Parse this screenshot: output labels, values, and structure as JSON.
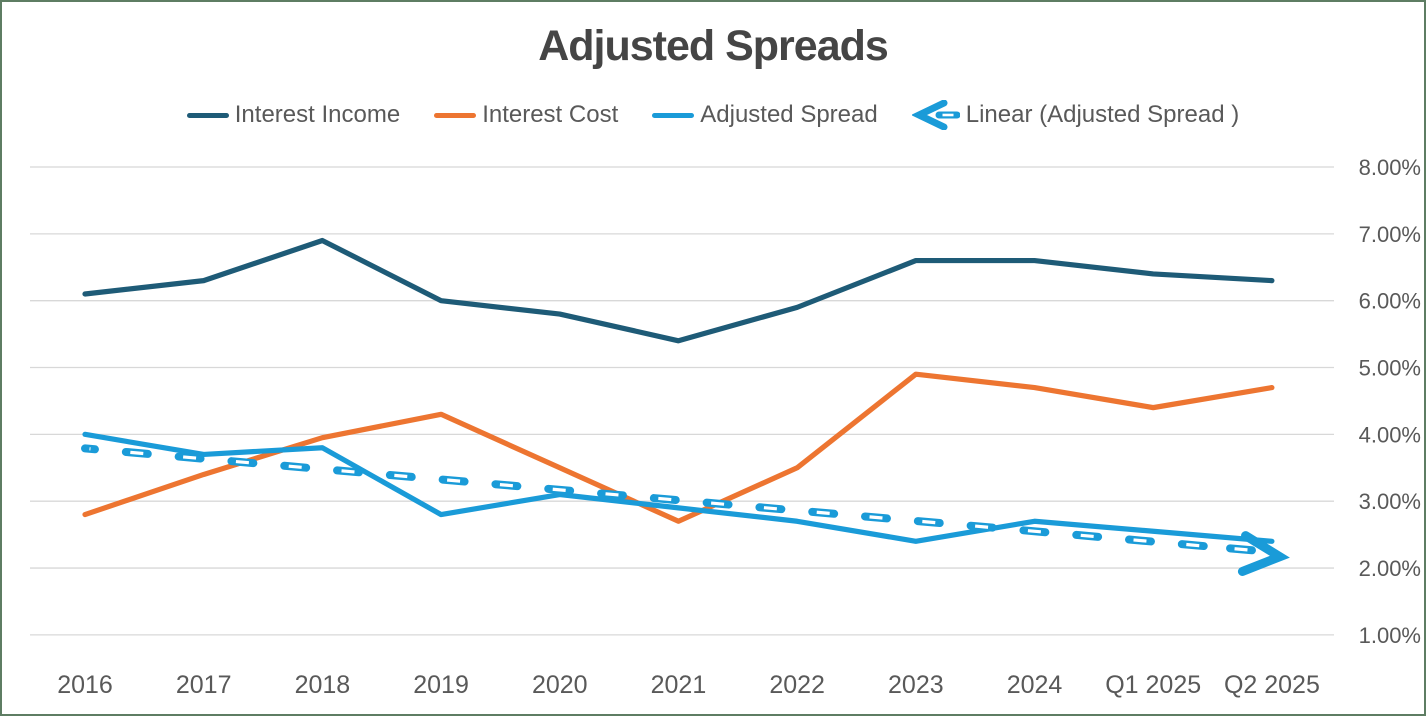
{
  "title": "Adjusted Spreads",
  "legend": {
    "items": [
      {
        "label": "Interest Income",
        "marker": "line",
        "color": "#1e5b77"
      },
      {
        "label": "Interest Cost",
        "marker": "line",
        "color": "#ed7531"
      },
      {
        "label": "Adjusted Spread",
        "marker": "line",
        "color": "#1a9bd8"
      },
      {
        "label": "Linear (Adjusted Spread )",
        "marker": "arrow-dash",
        "color": "#1a9bd8"
      }
    ]
  },
  "chart_data": {
    "type": "line",
    "title": "Adjusted Spreads",
    "categories": [
      "2016",
      "2017",
      "2018",
      "2019",
      "2020",
      "2021",
      "2022",
      "2023",
      "2024",
      "Q1 2025",
      "Q2 2025"
    ],
    "series": [
      {
        "name": "Interest Income",
        "color": "#1e5b77",
        "style": "solid",
        "values": [
          6.1,
          6.3,
          6.9,
          6.0,
          5.8,
          5.4,
          5.9,
          6.6,
          6.6,
          6.4,
          6.3
        ]
      },
      {
        "name": "Interest Cost",
        "color": "#ed7531",
        "style": "solid",
        "values": [
          2.8,
          3.4,
          3.95,
          4.3,
          3.5,
          2.7,
          3.5,
          4.9,
          4.7,
          4.4,
          4.7
        ]
      },
      {
        "name": "Adjusted Spread",
        "color": "#1a9bd8",
        "style": "solid",
        "values": [
          4.0,
          3.7,
          3.8,
          2.8,
          3.1,
          2.9,
          2.7,
          2.4,
          2.7,
          2.55,
          2.4
        ]
      }
    ],
    "trendline": {
      "name": "Linear (Adjusted Spread )",
      "for_series": "Adjusted Spread",
      "color": "#1a9bd8",
      "style": "dashed-capsules-with-arrowhead",
      "start_value": 3.79,
      "end_value": 2.24
    },
    "y_axis": {
      "side": "right",
      "ticks": [
        "8.00%",
        "7.00%",
        "6.00%",
        "5.00%",
        "4.00%",
        "3.00%",
        "2.00%",
        "1.00%"
      ],
      "tick_values": [
        8,
        7,
        6,
        5,
        4,
        3,
        2,
        1
      ],
      "unit": "%",
      "grid": true
    },
    "x_axis": {
      "ticks": [
        "2016",
        "2017",
        "2018",
        "2019",
        "2020",
        "2021",
        "2022",
        "2023",
        "2024",
        "Q1 2025",
        "Q2 2025"
      ]
    },
    "legend_position": "top",
    "grid_color": "#d8d8d8",
    "axis_text_color": "#595959",
    "title_color": "#454545"
  }
}
